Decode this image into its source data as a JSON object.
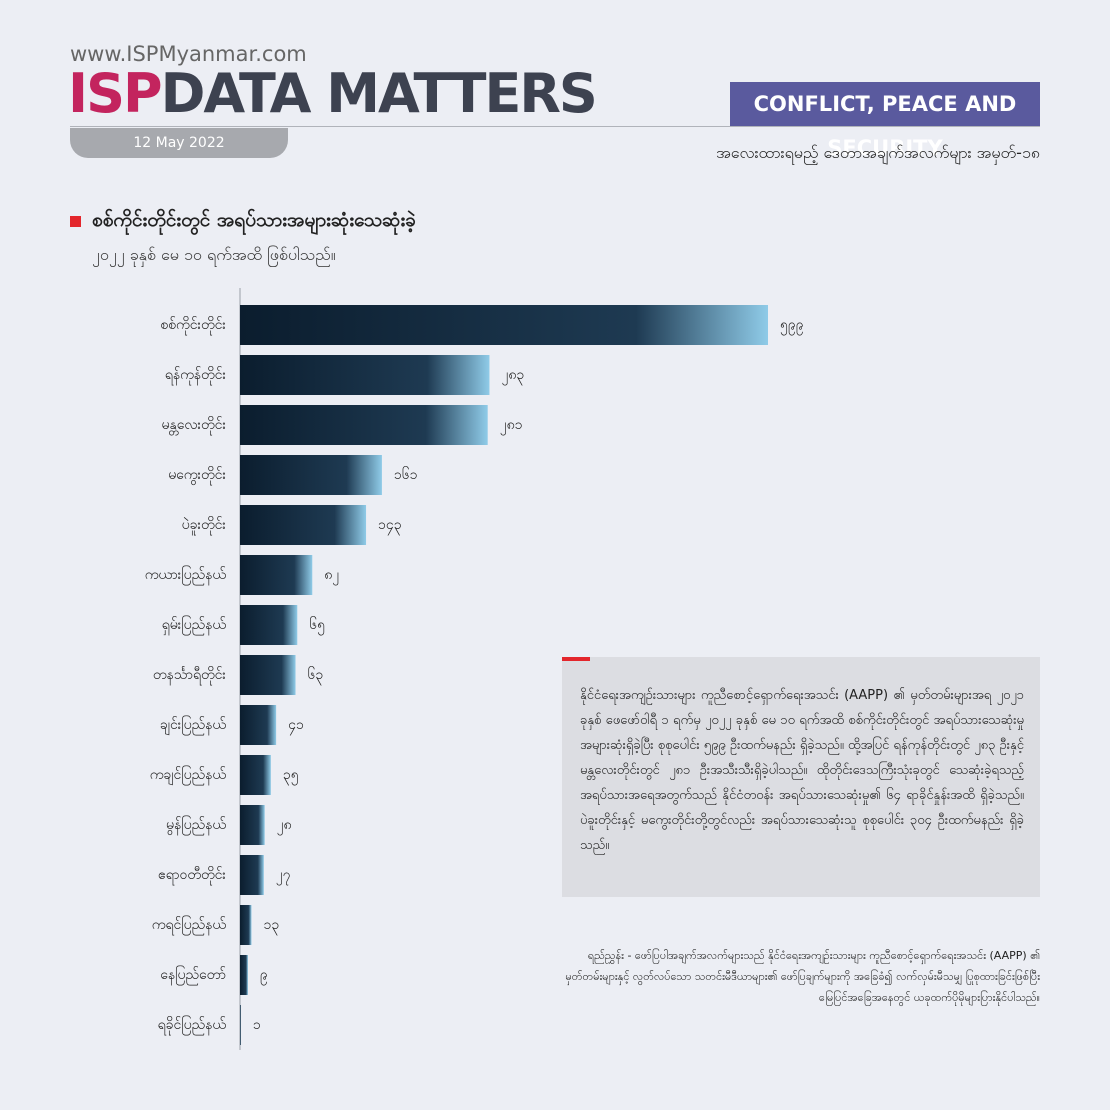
{
  "header": {
    "website": "www.ISPMyanmar.com",
    "brand": "ISP",
    "brand_rest": "DATA MATTERS",
    "date": "12 May 2022",
    "section": "CONFLICT, PEACE AND SECURITY",
    "series_title": "အလေးထားရမည့် ဒေတာအချက်အလက်များ အမှတ်-၁၈"
  },
  "chart_data": {
    "type": "bar",
    "orientation": "horizontal",
    "title": "စစ်ကိုင်းတိုင်းတွင် အရပ်သားအများဆုံးသေဆုံးခဲ့",
    "subtitle": "၂၀၂၂ ခုနှစ် မေ ၁၀ ရက်အထိ ဖြစ်ပါသည်။",
    "categories": [
      "စစ်ကိုင်းတိုင်း",
      "ရန်ကုန်တိုင်း",
      "မန္တလေးတိုင်း",
      "မကွေးတိုင်း",
      "ပဲခူးတိုင်း",
      "ကယားပြည်နယ်",
      "ရှမ်းပြည်နယ်",
      "တနင်္သာရီတိုင်း",
      "ချင်းပြည်နယ်",
      "ကချင်ပြည်နယ်",
      "မွန်ပြည်နယ်",
      "ဧရာဝတီတိုင်း",
      "ကရင်ပြည်နယ်",
      "နေပြည်တော်",
      "ရခိုင်ပြည်နယ်"
    ],
    "values": [
      599,
      283,
      281,
      161,
      143,
      82,
      65,
      63,
      41,
      35,
      28,
      27,
      13,
      9,
      1
    ],
    "value_labels": [
      "၅၉၉",
      "၂၈၃",
      "၂၈၁",
      "၁၆၁",
      "၁၄၃",
      "၈၂",
      "၆၅",
      "၆၃",
      "၄၁",
      "၃၅",
      "၂၈",
      "၂၇",
      "၁၃",
      "၉",
      "၁"
    ],
    "color": "#0b1d2e"
  },
  "note": "နိုင်ငံရေးအကျဉ်းသားများ ကူညီစောင့်ရှောက်ရေးအသင်း (AAPP) ၏ မှတ်တမ်းများအရ ၂၀၂၁ ခုနှစ် ဖေဖော်ဝါရီ ၁ ရက်မှ ၂၀၂၂ ခုနှစ် မေ ၁၀ ရက်အထိ စစ်ကိုင်းတိုင်းတွင် အရပ်သားသေဆုံးမှု အများဆုံးရှိခဲ့ပြီး စုစုပေါင်း ၅၉၉ ဦးထက်မနည်း ရှိခဲ့သည်။ ထို့အပြင် ရန်ကုန်တိုင်းတွင် ၂၈၃ ဦးနှင့် မန္တလေးတိုင်းတွင် ၂၈၁ ဦးအသီးသီးရှိခဲ့ပါသည်။ ထိုတိုင်းဒေသကြီးသုံးခုတွင် သေဆုံးခဲ့ရသည့် အရပ်သားအရေအတွက်သည် နိုင်ငံတဝန်း အရပ်သားသေဆုံးမှု၏ ၆၄ ရာခိုင်နှုန်းအထိ ရှိခဲ့သည်။ ပဲခူးတိုင်းနှင့် မကွေးတိုင်းတို့တွင်လည်း အရပ်သားသေဆုံးသူ စုစုပေါင်း ၃၀၄ ဦးထက်မနည်း ရှိခဲ့သည်။",
  "source": "ရည်ညွှန်း - ဖော်ပြပါအချက်အလက်များသည် နိုင်ငံရေးအကျဉ်းသားများ ကူညီစောင့်ရှောက်ရေးအသင်း (AAPP) ၏ မှတ်တမ်းများနှင့် လွတ်လပ်သော သတင်းမီဒီယာများ၏ ဖော်ပြချက်များကို အခြေခံ၍ လက်လှမ်းမီသမျှ ပြုစုထားခြင်းဖြစ်ပြီး မြေပြင်အခြေအနေတွင် ယခုထက်ပိုမိုများပြားနိုင်ပါသည်။"
}
